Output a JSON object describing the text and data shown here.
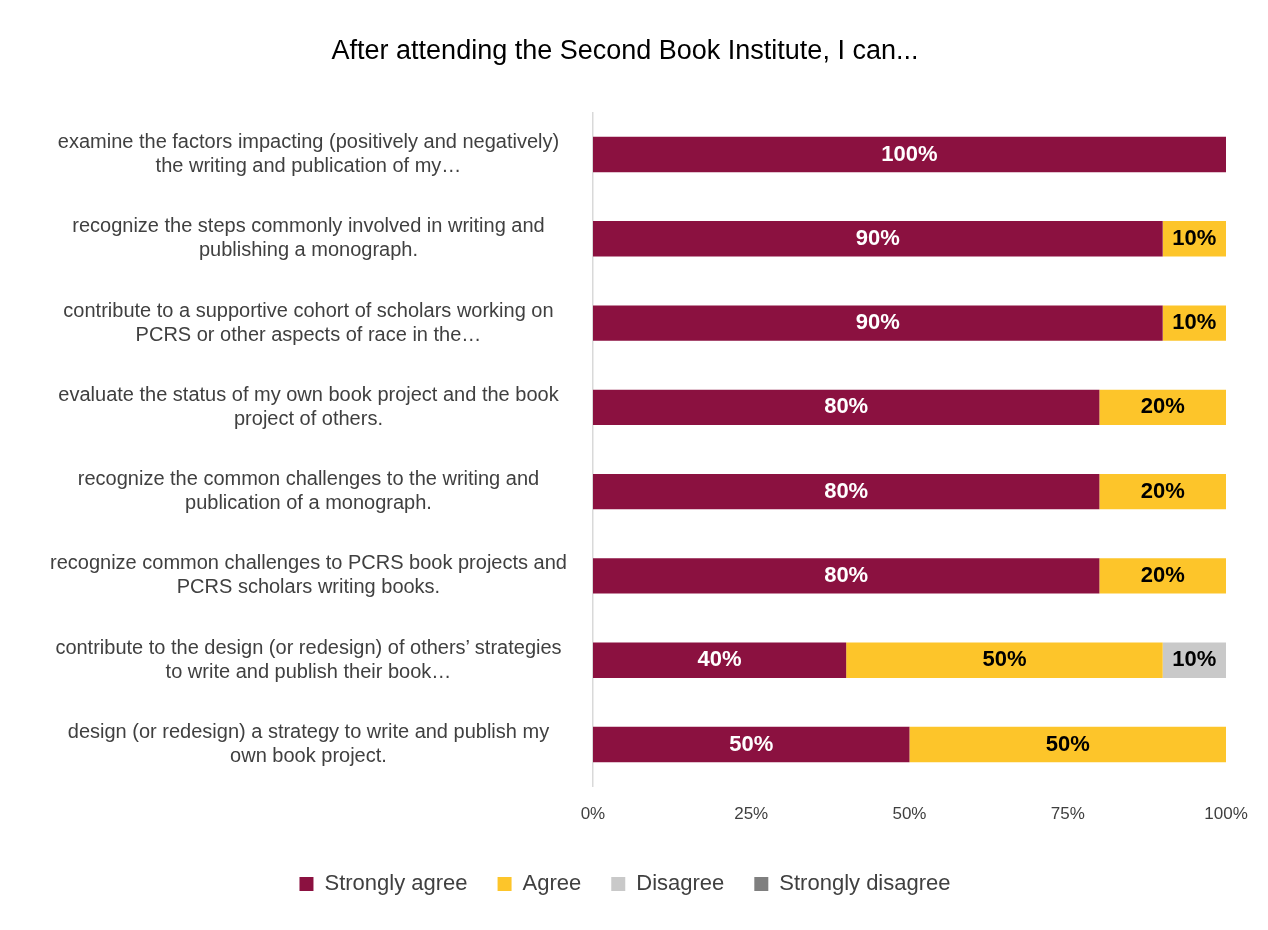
{
  "chart_data": {
    "type": "bar",
    "orientation": "horizontal",
    "stacked": true,
    "title": "After attending the Second Book Institute, I can...",
    "categories": [
      "examine the factors impacting (positively and negatively) the writing and publication of my…",
      "recognize the steps commonly involved in writing and publishing a monograph.",
      "contribute to a supportive cohort of scholars working on PCRS or other aspects of race in the…",
      "evaluate the status of my own book project and the book project of others.",
      "recognize the common challenges to the writing and publication of a monograph.",
      "recognize common challenges to PCRS book projects and PCRS scholars writing books.",
      "contribute to the design (or redesign) of others’ strategies to write and publish their book…",
      "design (or redesign) a strategy to write and publish my own book project."
    ],
    "series": [
      {
        "name": "Strongly agree",
        "color": "#8b1140",
        "values": [
          100,
          90,
          90,
          80,
          80,
          80,
          40,
          50
        ],
        "value_labels": [
          "100%",
          "90%",
          "90%",
          "80%",
          "80%",
          "80%",
          "40%",
          "50%"
        ]
      },
      {
        "name": "Agree",
        "color": "#fdc52a",
        "values": [
          null,
          10,
          10,
          20,
          20,
          20,
          50,
          50
        ],
        "value_labels": [
          null,
          "10%",
          "10%",
          "20%",
          "20%",
          "20%",
          "50%",
          "50%"
        ]
      },
      {
        "name": "Disagree",
        "color": "#c9c9c9",
        "values": [
          null,
          null,
          null,
          null,
          null,
          null,
          10,
          null
        ],
        "value_labels": [
          null,
          null,
          null,
          null,
          null,
          null,
          "10%",
          null
        ]
      },
      {
        "name": "Strongly disagree",
        "color": "#7f7f7f",
        "values": [
          null,
          null,
          null,
          null,
          null,
          null,
          null,
          null
        ]
      }
    ],
    "xlim": [
      0,
      100
    ],
    "xticks": [
      {
        "value": 0,
        "label": "0%"
      },
      {
        "value": 25,
        "label": "25%"
      },
      {
        "value": 50,
        "label": "50%"
      },
      {
        "value": 75,
        "label": "75%"
      },
      {
        "value": 100,
        "label": "100%"
      }
    ],
    "grid": false,
    "legend": "bottom"
  }
}
